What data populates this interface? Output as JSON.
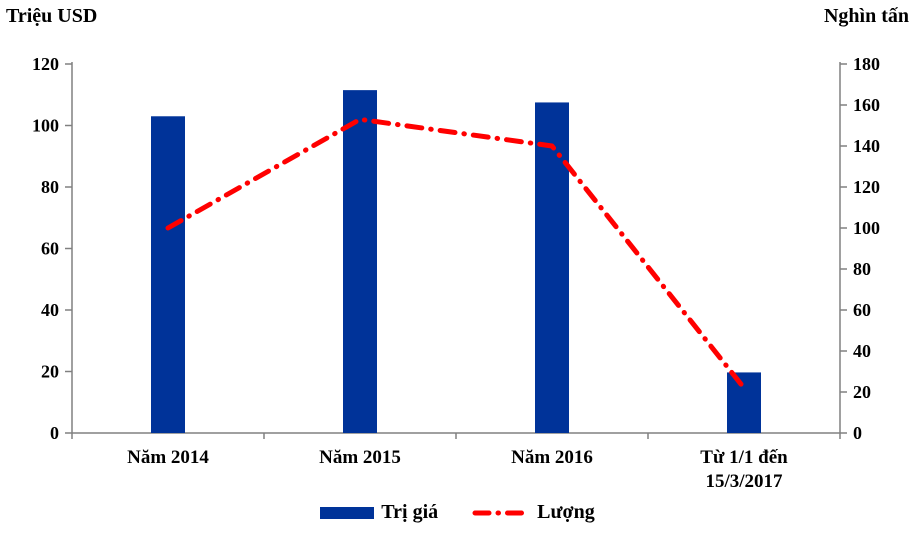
{
  "chart_data": {
    "type": "bar",
    "subtype": "bar+line-dual-axis",
    "title": "",
    "left_axis_title": "Triệu USD",
    "right_axis_title": "Nghìn tấn",
    "categories": [
      "Năm 2014",
      "Năm 2015",
      "Năm 2016",
      "Từ 1/1 đến\n15/3/2017"
    ],
    "series": [
      {
        "name": "Trị giá",
        "type": "bar",
        "axis": "left",
        "color": "#003399",
        "values": [
          103,
          111.5,
          107.5,
          19.7
        ]
      },
      {
        "name": "Lượng",
        "type": "line",
        "axis": "right",
        "color": "#ff0000",
        "line_style": "dash-dot",
        "values": [
          100,
          153,
          140,
          22
        ]
      }
    ],
    "left_axis": {
      "min": 0,
      "max": 120,
      "step": 20,
      "ticks": [
        0,
        20,
        40,
        60,
        80,
        100,
        120
      ]
    },
    "right_axis": {
      "min": 0,
      "max": 180,
      "step": 20,
      "ticks": [
        0,
        20,
        40,
        60,
        80,
        100,
        120,
        140,
        160,
        180
      ]
    },
    "grid": false,
    "axis_line_color": "#808080",
    "legend_position": "bottom"
  }
}
